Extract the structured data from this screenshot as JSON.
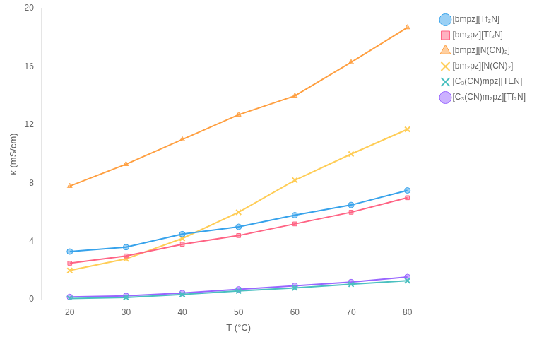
{
  "chart_data": {
    "type": "line",
    "xlabel": "T (°C)",
    "ylabel": "κ (mS/cm)",
    "x": [
      20,
      30,
      40,
      50,
      60,
      70,
      80
    ],
    "series": [
      {
        "name": "[bmpz][Tf₂N]",
        "marker": "circle",
        "values": [
          3.3,
          3.6,
          4.5,
          5.0,
          5.8,
          6.5,
          7.5
        ]
      },
      {
        "name": "[bm₂pz][Tf₂N]",
        "marker": "square",
        "values": [
          2.5,
          3.0,
          3.8,
          4.4,
          5.2,
          6.0,
          7.0
        ]
      },
      {
        "name": "[bmpz][N(CN)₂]",
        "marker": "triangle",
        "values": [
          7.8,
          9.3,
          11.0,
          12.7,
          14.0,
          16.3,
          18.7
        ]
      },
      {
        "name": "[bm₂pz][N(CN)₂]",
        "marker": "x",
        "values": [
          2.0,
          2.8,
          4.2,
          6.0,
          8.2,
          10.0,
          11.7
        ]
      },
      {
        "name": "[C₃(CN)mpz][TEN]",
        "marker": "x",
        "values": [
          0.07,
          0.15,
          0.35,
          0.6,
          0.8,
          1.05,
          1.3
        ]
      },
      {
        "name": "[C₃(CN)m₂pz][Tf₂N]",
        "marker": "circle",
        "values": [
          0.18,
          0.25,
          0.45,
          0.7,
          0.95,
          1.2,
          1.55
        ]
      }
    ],
    "xlim": [
      15,
      85
    ],
    "xticks": [
      20,
      30,
      40,
      50,
      60,
      70,
      80
    ],
    "ylim": [
      0,
      20
    ],
    "yticks": [
      0,
      4,
      8,
      12,
      16,
      20
    ],
    "grid": false,
    "legend": "right"
  }
}
